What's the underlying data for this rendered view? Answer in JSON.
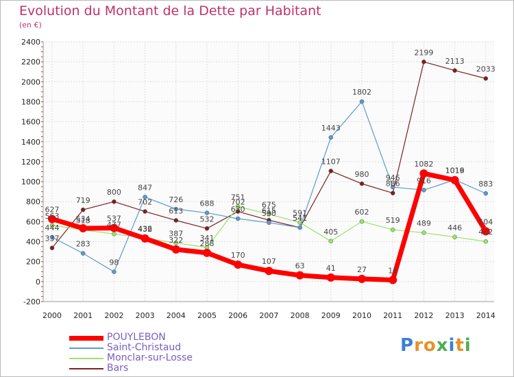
{
  "title": "Evolution du Montant de la Dette par Habitant",
  "unit": "(en €)",
  "logo": "Proxiti",
  "chart_data": {
    "type": "line",
    "title": "Evolution du Montant de la Dette par Habitant",
    "subtitle": "(en €)",
    "xlabel": "",
    "ylabel": "",
    "x": [
      2000,
      2001,
      2002,
      2003,
      2004,
      2005,
      2006,
      2007,
      2008,
      2009,
      2010,
      2011,
      2012,
      2013,
      2014
    ],
    "ylim": [
      -200,
      2400
    ],
    "yticks": [
      -200,
      0,
      200,
      400,
      600,
      800,
      1000,
      1200,
      1400,
      1600,
      1800,
      2000,
      2200,
      2400
    ],
    "grid": true,
    "legend_position": "bottom-left",
    "series": [
      {
        "name": "POUYLEBON",
        "color": "#ff0000",
        "values": [
          627,
          534,
          537,
          432,
          322,
          288,
          170,
          107,
          63,
          41,
          27,
          16,
          1082,
          1016,
          504
        ]
      },
      {
        "name": "Saint-Christaud",
        "color": "#5a9ad0",
        "values": [
          444,
          283,
          98,
          847,
          726,
          688,
          630,
          590,
          541,
          1443,
          1802,
          946,
          916,
          1019,
          883
        ]
      },
      {
        "name": "Monclar-sur-Losse",
        "color": "#99e366",
        "values": [
          563,
          518,
          477,
          436,
          387,
          341,
          751,
          675,
          591,
          405,
          602,
          519,
          489,
          446,
          402
        ]
      },
      {
        "name": "Bars",
        "color": "#7b2020",
        "values": [
          337,
          719,
          800,
          702,
          613,
          532,
          702,
          615,
          541,
          1107,
          980,
          886,
          2199,
          2113,
          2033
        ]
      }
    ]
  }
}
